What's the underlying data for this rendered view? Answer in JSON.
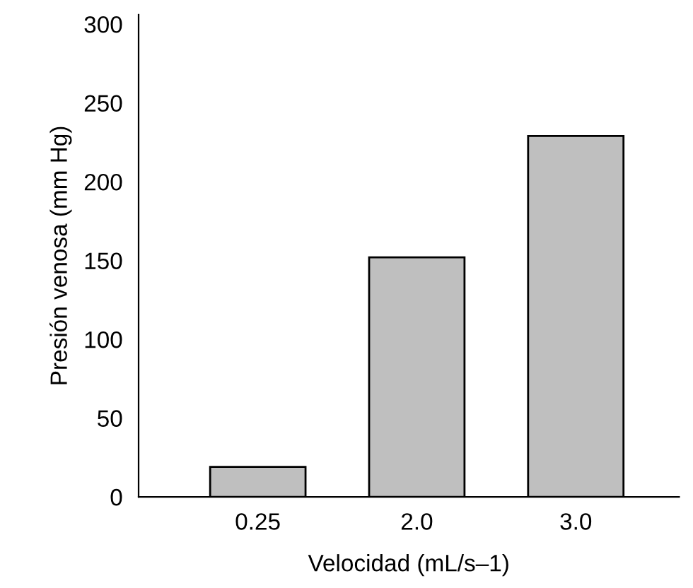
{
  "chart_data": {
    "type": "bar",
    "xlabel": "Velocidad (mL/s–1)",
    "ylabel": "Presión venosa (mm Hg)",
    "categories": [
      "0.25",
      "2.0",
      "3.0"
    ],
    "values": [
      19,
      152,
      229
    ],
    "color": "#bfbfbf",
    "ylim": [
      0,
      306
    ],
    "yticks": [
      0,
      50,
      100,
      150,
      200,
      250,
      300
    ],
    "grid": false,
    "legend": false
  }
}
